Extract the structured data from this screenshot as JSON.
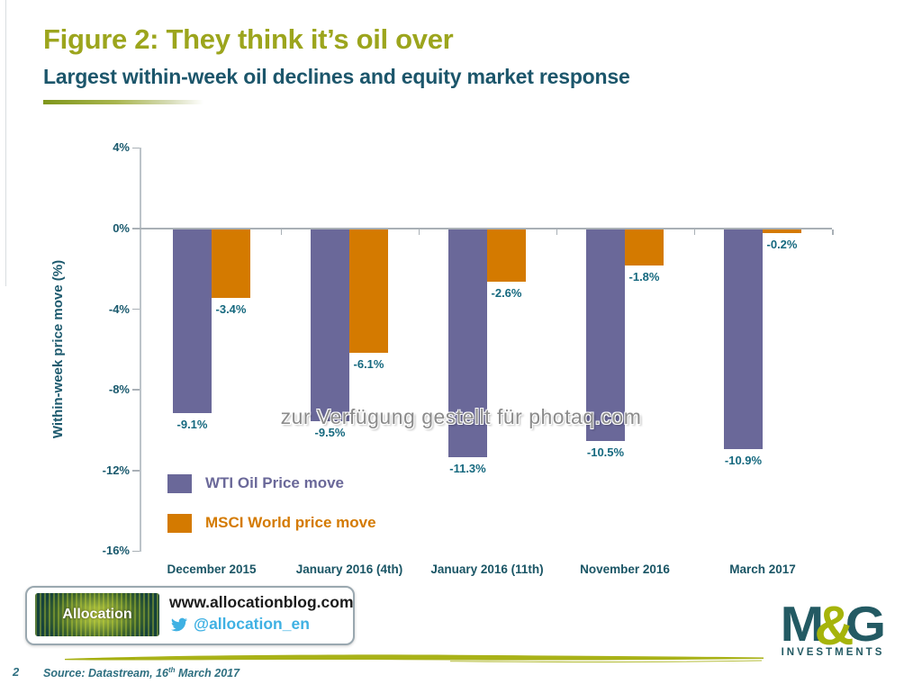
{
  "header": {
    "figure_title": "Figure 2: They think it’s oil over",
    "subtitle": "Largest within-week oil declines and equity market response"
  },
  "chart_data": {
    "type": "bar",
    "title": "Figure 2: They think it’s oil over",
    "subtitle": "Largest within-week oil declines and equity market response",
    "categories": [
      "December 2015",
      "January 2016 (4th)",
      "January 2016 (11th)",
      "November 2016",
      "March 2017"
    ],
    "series": [
      {
        "name": "WTI Oil Price move",
        "color": "#6A6899",
        "values": [
          -9.1,
          -9.5,
          -11.3,
          -10.5,
          -10.9
        ],
        "labels": [
          "-9.1%",
          "-9.5%",
          "-11.3%",
          "-10.5%",
          "-10.9%"
        ]
      },
      {
        "name": "MSCI World price move",
        "color": "#D47A00",
        "values": [
          -3.4,
          -6.1,
          -2.6,
          -1.8,
          -0.2
        ],
        "labels": [
          "-3.4%",
          "-6.1%",
          "-2.6%",
          "-1.8%",
          "-0.2%"
        ]
      }
    ],
    "xlabel": "",
    "ylabel": "Within-week price move (%)",
    "ylim": [
      -16,
      4
    ],
    "yticks": [
      {
        "value": 4,
        "label": "4%"
      },
      {
        "value": 0,
        "label": "0%"
      },
      {
        "value": -4,
        "label": "-4%"
      },
      {
        "value": -8,
        "label": "-8%"
      },
      {
        "value": -12,
        "label": "-12%"
      },
      {
        "value": -16,
        "label": "-16%"
      }
    ],
    "grid": "zero-line-only",
    "legend_position": "inside-bottom-left"
  },
  "watermark": {
    "text": "zur Verfügung gestellt für photaq.com"
  },
  "footer": {
    "allocation_logo_text": "Allocation",
    "website": "www.allocationblog.com",
    "twitter_handle": "@allocation_en",
    "brand": {
      "m": "M",
      "amp": "&",
      "g": "G",
      "subtext": "INVESTMENTS"
    },
    "page_number": "2",
    "source_prefix": "Source: Datastream, 16",
    "source_sup": "th",
    "source_suffix": " March 2017"
  },
  "colors": {
    "title_green": "#9CA51D",
    "teal_text": "#1C566B",
    "axis_gray": "#A9B0B6",
    "twitter_blue": "#3FB1E3",
    "brand_olive": "#A6B40A",
    "brand_teal": "#235A63"
  }
}
